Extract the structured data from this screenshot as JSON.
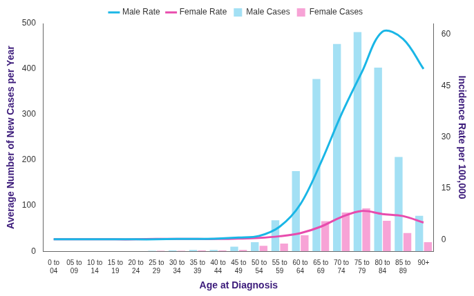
{
  "chart_data": {
    "type": "bar",
    "x_label": "Age at Diagnosis",
    "y_label": "Average Number of New Cases per Year",
    "y2_label": "Incidence Rate per 100,000",
    "categories": [
      "0 to 04",
      "05 to 09",
      "10 to 14",
      "15 to 19",
      "20 to 24",
      "25 to 29",
      "30 to 34",
      "35 to 39",
      "40 to 44",
      "45 to 49",
      "50 to 54",
      "55 to 59",
      "60 to 64",
      "65 to 69",
      "70 to 74",
      "75 to 79",
      "80 to 84",
      "85 to 89",
      "90+"
    ],
    "series": [
      {
        "name": "Male Cases",
        "type": "bar",
        "color": "#a3e0f4",
        "values": [
          0,
          0,
          0,
          0,
          0,
          1,
          2,
          3,
          3,
          10,
          20,
          68,
          176,
          378,
          455,
          481,
          403,
          207,
          78
        ]
      },
      {
        "name": "Female Cases",
        "type": "bar",
        "color": "#f7a3d6",
        "values": [
          0,
          0,
          0,
          0,
          0,
          1,
          1,
          2,
          2,
          3,
          12,
          17,
          35,
          66,
          85,
          94,
          67,
          40,
          20
        ]
      },
      {
        "name": "Male Rate",
        "type": "line",
        "axis": "y2",
        "color": "#1ab6e6",
        "values": [
          0.1,
          0.1,
          0.1,
          0.1,
          0.1,
          0.1,
          0.2,
          0.2,
          0.3,
          0.6,
          1.1,
          3.8,
          10.3,
          22.5,
          36.6,
          49,
          60.8,
          58.7,
          49.9
        ]
      },
      {
        "name": "Female Rate",
        "type": "line",
        "axis": "y2",
        "color": "#e84bad",
        "values": [
          0.1,
          0.1,
          0.1,
          0.1,
          0.1,
          0.2,
          0.2,
          0.2,
          0.2,
          0.3,
          0.5,
          1,
          1.9,
          3.8,
          6.6,
          8.4,
          7.5,
          6.9,
          5
        ]
      }
    ],
    "ylim": [
      0,
      500
    ],
    "yticks": [
      0,
      100,
      200,
      300,
      400,
      500
    ],
    "y2lim": [
      -3.4,
      63.2
    ],
    "y2ticks": [
      0,
      15,
      30,
      45,
      60
    ],
    "grid": false,
    "legend": "top"
  }
}
